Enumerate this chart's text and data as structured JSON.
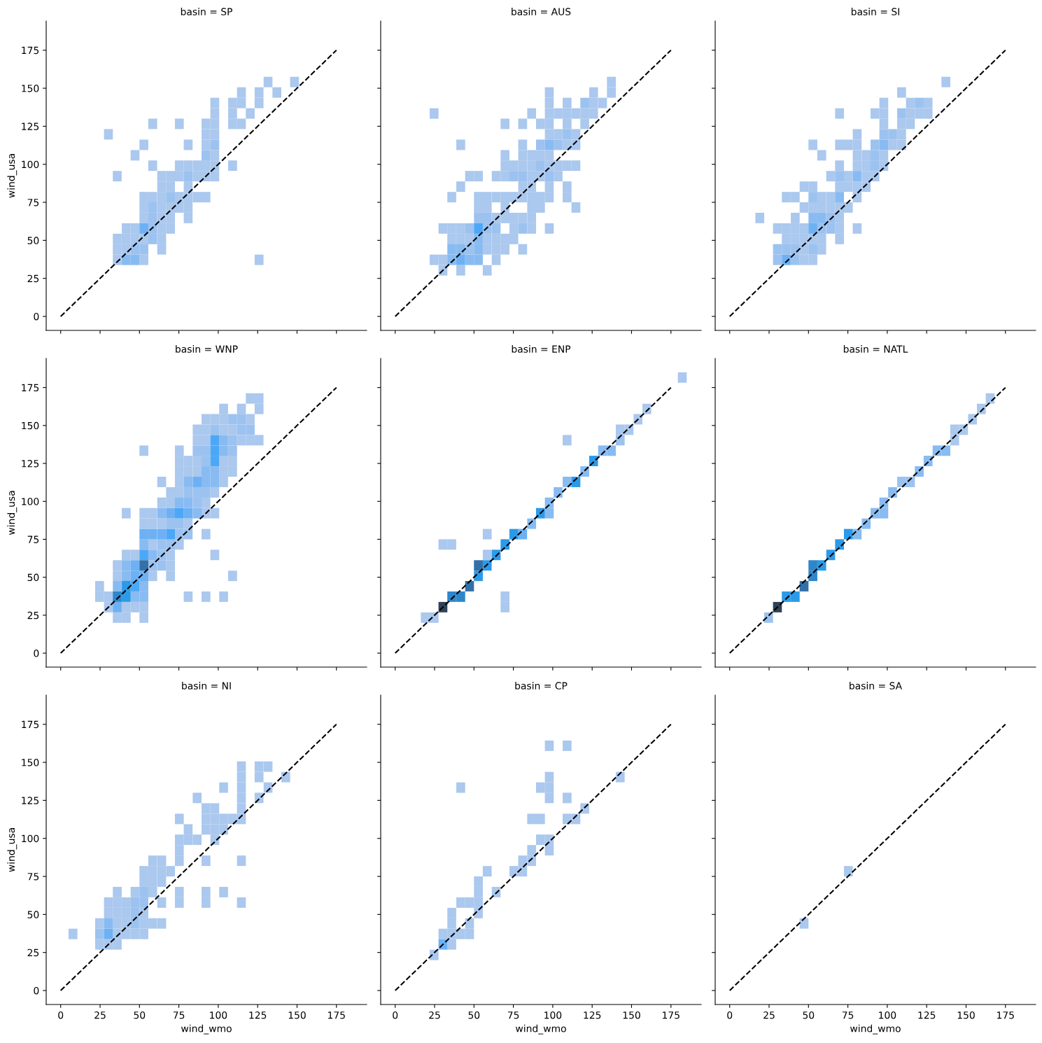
{
  "chart_data": [
    {
      "type": "scatter",
      "title": "basin = SP",
      "ylabel": "wind_usa",
      "xlim": [
        -9.2,
        194.2
      ],
      "ylim": [
        -9.2,
        194.2
      ],
      "xticks": [
        0,
        25,
        50,
        75,
        100,
        125,
        150,
        175
      ],
      "yticks": [
        0,
        25,
        50,
        75,
        100,
        125,
        150,
        175
      ],
      "tick_labels": "y",
      "marker": "square",
      "series": [
        {
          "color": "#abc8ee",
          "x": [
            131.6,
            148.4,
            114.7,
            125.9,
            137.2,
            97.8,
            109.1,
            114.7,
            125.9,
            97.8,
            109.1,
            120.3,
            58.4,
            75.3,
            92.2,
            97.8,
            109.1,
            114.7,
            30.3,
            92.2,
            97.8,
            52.8,
            80.9,
            92.2,
            47.2,
            97.8,
            58.4,
            75.3,
            80.9,
            86.6,
            92.2,
            97.8,
            109.1,
            35.9,
            64.1,
            69.7,
            75.3,
            86.6,
            92.2,
            97.8,
            64.1,
            69.7,
            80.9,
            52.8,
            58.4,
            64.1,
            75.3,
            80.9,
            86.6,
            92.2,
            52.8,
            64.1,
            69.7,
            75.3,
            80.9,
            52.8,
            64.1,
            69.7,
            80.9,
            41.6,
            47.2,
            64.1,
            69.7,
            35.9,
            41.6,
            47.2,
            52.8,
            64.1,
            35.9,
            41.6,
            64.1,
            35.9,
            52.8,
            125.9
          ],
          "values": [
            154.1,
            154.1,
            147.2,
            147.2,
            147.2,
            140.3,
            140.3,
            140.3,
            140.3,
            133.4,
            133.4,
            133.4,
            126.6,
            126.6,
            126.6,
            126.6,
            126.6,
            126.6,
            119.7,
            119.7,
            119.7,
            112.8,
            112.8,
            112.8,
            105.9,
            105.9,
            99.1,
            99.1,
            99.1,
            99.1,
            99.1,
            99.1,
            99.1,
            92.2,
            92.2,
            92.2,
            92.2,
            92.2,
            92.2,
            92.2,
            85.3,
            85.3,
            85.3,
            78.4,
            78.4,
            78.4,
            78.4,
            78.4,
            78.4,
            78.4,
            71.6,
            71.6,
            71.6,
            71.6,
            71.6,
            64.7,
            64.7,
            64.7,
            64.7,
            57.8,
            57.8,
            57.8,
            57.8,
            50.9,
            50.9,
            50.9,
            50.9,
            50.9,
            44.1,
            44.1,
            44.1,
            37.2,
            37.2,
            37.2
          ]
        },
        {
          "color": "#9cc2f0",
          "x": [
            97.8,
            92.2,
            80.9,
            69.7,
            58.4,
            58.4,
            58.4,
            58.4,
            47.2,
            52.8
          ],
          "values": [
            112.8,
            105.9,
            92.2,
            78.4,
            71.6,
            64.7,
            57.8,
            50.9,
            44.1,
            44.1
          ]
        },
        {
          "color": "#88bbf2",
          "x": [
            41.6,
            47.2
          ],
          "values": [
            37.2,
            37.2
          ]
        },
        {
          "color": "#6db1f4",
          "x": [
            52.8
          ],
          "values": [
            57.8
          ]
        },
        {
          "type": "line",
          "color": "#000000",
          "line_style": "dashed",
          "marker": "none",
          "x": [
            0,
            175
          ],
          "values": [
            0,
            175
          ]
        }
      ]
    },
    {
      "type": "scatter",
      "title": "basin = AUS",
      "xlim": [
        -9.2,
        194.2
      ],
      "ylim": [
        -9.2,
        194.2
      ],
      "xticks": [
        0,
        25,
        50,
        75,
        100,
        125,
        150,
        175
      ],
      "yticks": [
        0,
        25,
        50,
        75,
        100,
        125,
        150,
        175
      ],
      "tick_labels": false,
      "marker": "square",
      "series": [
        {
          "color": "#abc8ee",
          "x": [
            137.2,
            97.8,
            125.9,
            137.2,
            97.8,
            109.1,
            125.9,
            131.6,
            24.7,
            86.6,
            97.8,
            103.4,
            109.1,
            114.7,
            120.3,
            125.9,
            69.7,
            80.9,
            92.2,
            97.8,
            109.1,
            120.3,
            97.8,
            103.4,
            114.7,
            41.6,
            80.9,
            109.1,
            114.7,
            69.7,
            80.9,
            86.6,
            92.2,
            97.8,
            69.7,
            75.3,
            80.9,
            86.6,
            97.8,
            103.4,
            109.1,
            114.7,
            47.2,
            52.8,
            64.1,
            69.7,
            86.6,
            92.2,
            103.4,
            41.6,
            80.9,
            86.6,
            97.8,
            109.1,
            35.9,
            52.8,
            58.4,
            64.1,
            69.7,
            75.3,
            80.9,
            86.6,
            92.2,
            97.8,
            109.1,
            52.8,
            58.4,
            69.7,
            86.6,
            92.2,
            114.7,
            64.1,
            69.7,
            75.3,
            80.9,
            86.6,
            30.3,
            35.9,
            41.6,
            75.3,
            86.6,
            97.8,
            35.9,
            41.6,
            47.2,
            58.4,
            64.1,
            69.7,
            75.3,
            58.4,
            64.1,
            69.7,
            80.9,
            24.7,
            30.3,
            64.1,
            30.3,
            41.6,
            58.4
          ],
          "values": [
            154.1,
            147.2,
            147.2,
            147.2,
            140.3,
            140.3,
            140.3,
            140.3,
            133.4,
            133.4,
            133.4,
            133.4,
            133.4,
            133.4,
            133.4,
            133.4,
            126.6,
            126.6,
            126.6,
            126.6,
            126.6,
            126.6,
            119.7,
            119.7,
            119.7,
            112.8,
            112.8,
            112.8,
            112.8,
            105.9,
            105.9,
            105.9,
            105.9,
            105.9,
            99.1,
            99.1,
            99.1,
            99.1,
            99.1,
            99.1,
            99.1,
            99.1,
            92.2,
            92.2,
            92.2,
            92.2,
            92.2,
            92.2,
            92.2,
            85.3,
            85.3,
            85.3,
            85.3,
            85.3,
            78.4,
            78.4,
            78.4,
            78.4,
            78.4,
            78.4,
            78.4,
            78.4,
            78.4,
            78.4,
            78.4,
            71.6,
            71.6,
            71.6,
            71.6,
            71.6,
            71.6,
            64.7,
            64.7,
            64.7,
            64.7,
            64.7,
            57.8,
            57.8,
            57.8,
            57.8,
            57.8,
            57.8,
            50.9,
            50.9,
            50.9,
            50.9,
            50.9,
            50.9,
            50.9,
            44.1,
            44.1,
            44.1,
            44.1,
            37.2,
            37.2,
            37.2,
            30.3,
            30.3,
            30.3
          ]
        },
        {
          "color": "#9cc2f0",
          "x": [
            120.3,
            109.1,
            92.2,
            103.4,
            92.2,
            75.3,
            80.9,
            97.8,
            52.8,
            58.4,
            47.2,
            58.4,
            64.1,
            80.9,
            47.2
          ],
          "values": [
            140.3,
            119.7,
            112.8,
            112.8,
            99.1,
            92.2,
            92.2,
            92.2,
            64.7,
            64.7,
            57.8,
            57.8,
            57.8,
            57.8,
            44.1
          ]
        },
        {
          "color": "#88bbf2",
          "x": [
            97.8,
            52.8,
            35.9,
            41.6,
            52.8,
            35.9,
            47.2,
            52.8
          ],
          "values": [
            112.8,
            50.9,
            44.1,
            44.1,
            44.1,
            37.2,
            37.2,
            37.2
          ]
        },
        {
          "color": "#6db1f4",
          "x": [
            41.6
          ],
          "values": [
            37.2
          ]
        },
        {
          "color": "#4ca8f6",
          "x": [
            52.8
          ],
          "values": [
            57.8
          ]
        },
        {
          "type": "line",
          "color": "#000000",
          "line_style": "dashed",
          "marker": "none",
          "x": [
            0,
            175
          ],
          "values": [
            0,
            175
          ]
        }
      ]
    },
    {
      "type": "scatter",
      "title": "basin = SI",
      "xlim": [
        -9.2,
        194.2
      ],
      "ylim": [
        -9.2,
        194.2
      ],
      "xticks": [
        0,
        25,
        50,
        75,
        100,
        125,
        150,
        175
      ],
      "yticks": [
        0,
        25,
        50,
        75,
        100,
        125,
        150,
        175
      ],
      "tick_labels": false,
      "marker": "square",
      "series": [
        {
          "color": "#abc8ee",
          "x": [
            137.2,
            109.1,
            97.8,
            114.7,
            125.9,
            69.7,
            92.2,
            97.8,
            114.7,
            120.3,
            125.9,
            97.8,
            109.1,
            114.7,
            80.9,
            109.1,
            52.8,
            69.7,
            75.3,
            80.9,
            103.4,
            109.1,
            58.4,
            80.9,
            86.6,
            97.8,
            69.7,
            80.9,
            86.6,
            97.8,
            64.1,
            75.3,
            86.6,
            92.2,
            47.2,
            52.8,
            69.7,
            75.3,
            80.9,
            86.6,
            35.9,
            41.6,
            58.4,
            64.1,
            80.9,
            47.2,
            52.8,
            58.4,
            64.1,
            69.7,
            75.3,
            19.1,
            41.6,
            69.7,
            30.3,
            35.9,
            41.6,
            47.2,
            69.7,
            80.9,
            35.9,
            41.6,
            47.2,
            52.8,
            58.4,
            69.7,
            47.2,
            58.4,
            47.2,
            52.8
          ],
          "values": [
            154.1,
            147.2,
            140.3,
            140.3,
            140.3,
            133.4,
            133.4,
            133.4,
            133.4,
            133.4,
            133.4,
            126.6,
            126.6,
            126.6,
            119.7,
            119.7,
            112.8,
            112.8,
            112.8,
            112.8,
            112.8,
            112.8,
            105.9,
            105.9,
            105.9,
            105.9,
            99.1,
            99.1,
            99.1,
            99.1,
            92.2,
            92.2,
            92.2,
            92.2,
            85.3,
            85.3,
            85.3,
            85.3,
            85.3,
            85.3,
            78.4,
            78.4,
            78.4,
            78.4,
            78.4,
            71.6,
            71.6,
            71.6,
            71.6,
            71.6,
            71.6,
            64.7,
            64.7,
            64.7,
            57.8,
            57.8,
            57.8,
            57.8,
            57.8,
            57.8,
            50.9,
            50.9,
            50.9,
            50.9,
            50.9,
            50.9,
            44.1,
            44.1,
            37.2,
            37.2
          ]
        },
        {
          "color": "#9cc2f0",
          "x": [
            120.3,
            109.1,
            97.8,
            103.4,
            92.2,
            92.2,
            92.2,
            69.7,
            52.8,
            64.1,
            58.4,
            64.1,
            30.3,
            35.9,
            41.6,
            52.8,
            30.3,
            41.6
          ],
          "values": [
            140.3,
            133.4,
            119.7,
            119.7,
            112.8,
            105.9,
            99.1,
            92.2,
            78.4,
            64.7,
            57.8,
            57.8,
            44.1,
            44.1,
            44.1,
            44.1,
            37.2,
            37.2
          ]
        },
        {
          "color": "#88bbf2",
          "x": [
            97.8,
            80.9,
            69.7,
            52.8,
            58.4
          ],
          "values": [
            112.8,
            92.2,
            78.4,
            64.7,
            64.7
          ]
        },
        {
          "color": "#6db1f4",
          "x": [
            52.8,
            35.9
          ],
          "values": [
            57.8,
            37.2
          ]
        },
        {
          "type": "line",
          "color": "#000000",
          "line_style": "dashed",
          "marker": "none",
          "x": [
            0,
            175
          ],
          "values": [
            0,
            175
          ]
        }
      ]
    },
    {
      "type": "scatter",
      "title": "basin = WNP",
      "ylabel": "wind_usa",
      "xlim": [
        -9.2,
        194.2
      ],
      "ylim": [
        -9.2,
        194.2
      ],
      "xticks": [
        0,
        25,
        50,
        75,
        100,
        125,
        150,
        175
      ],
      "yticks": [
        0,
        25,
        50,
        75,
        100,
        125,
        150,
        175
      ],
      "tick_labels": "y",
      "marker": "square",
      "series": [
        {
          "color": "#abc8ee",
          "x": [
            120.3,
            125.9,
            103.4,
            114.7,
            125.9,
            92.2,
            97.8,
            103.4,
            120.3,
            86.6,
            92.2,
            103.4,
            109.1,
            86.6,
            92.2,
            114.7,
            120.3,
            125.9,
            52.8,
            75.3,
            75.3,
            80.9,
            86.6,
            103.4,
            109.1,
            75.3,
            80.9,
            86.6,
            103.4,
            109.1,
            64.1,
            75.3,
            103.4,
            69.7,
            75.3,
            97.8,
            64.1,
            69.7,
            92.2,
            41.6,
            52.8,
            58.4,
            92.2,
            97.8,
            52.8,
            58.4,
            64.1,
            80.9,
            92.2,
            58.4,
            75.3,
            41.6,
            47.2,
            69.7,
            97.8,
            35.9,
            69.7,
            35.9,
            58.4,
            69.7,
            109.1,
            24.7,
            24.7,
            30.3,
            80.9,
            92.2,
            103.4,
            30.3,
            41.6,
            47.2,
            52.8,
            35.9,
            41.6,
            52.8
          ],
          "values": [
            167.8,
            167.8,
            160.9,
            160.9,
            160.9,
            154.1,
            154.1,
            154.1,
            154.1,
            147.2,
            147.2,
            147.2,
            147.2,
            140.3,
            140.3,
            140.3,
            140.3,
            140.3,
            133.4,
            133.4,
            126.6,
            126.6,
            126.6,
            126.6,
            126.6,
            119.7,
            119.7,
            119.7,
            119.7,
            119.7,
            112.8,
            112.8,
            112.8,
            105.9,
            105.9,
            105.9,
            99.1,
            99.1,
            99.1,
            92.2,
            92.2,
            92.2,
            92.2,
            92.2,
            85.3,
            85.3,
            85.3,
            85.3,
            78.4,
            71.6,
            71.6,
            64.7,
            64.7,
            64.7,
            64.7,
            57.8,
            57.8,
            50.9,
            50.9,
            50.9,
            50.9,
            44.1,
            37.2,
            37.2,
            37.2,
            37.2,
            37.2,
            30.3,
            30.3,
            30.3,
            30.3,
            23.4,
            23.4,
            23.4
          ]
        },
        {
          "color": "#9cc2f0",
          "x": [
            109.1,
            114.7,
            97.8,
            114.7,
            120.3,
            109.1,
            86.6,
            92.2,
            109.1,
            92.2,
            80.9,
            86.6,
            92.2,
            86.6,
            69.7,
            75.3,
            75.3,
            80.9,
            64.1,
            69.7,
            64.1,
            58.4,
            64.1
          ],
          "values": [
            154.1,
            154.1,
            147.2,
            147.2,
            147.2,
            140.3,
            133.4,
            133.4,
            133.4,
            126.6,
            105.9,
            105.9,
            105.9,
            99.1,
            85.3,
            85.3,
            78.4,
            78.4,
            71.6,
            71.6,
            64.7,
            57.8,
            57.8
          ]
        },
        {
          "color": "#88bbf2",
          "x": [
            103.4,
            103.4,
            92.2,
            97.8,
            80.9,
            92.2,
            97.8,
            75.3,
            80.9,
            64.1,
            86.6,
            52.8,
            58.4,
            41.6,
            41.6,
            35.9,
            52.8,
            47.2,
            52.8
          ],
          "values": [
            140.3,
            133.4,
            119.7,
            119.7,
            112.8,
            112.8,
            112.8,
            99.1,
            99.1,
            92.2,
            92.2,
            71.6,
            64.7,
            57.8,
            50.9,
            44.1,
            44.1,
            37.2,
            37.2
          ]
        },
        {
          "color": "#6db1f4",
          "x": [
            86.6,
            69.7,
            80.9,
            52.8,
            58.4,
            64.1,
            47.2,
            47.2,
            52.8,
            35.9
          ],
          "values": [
            112.8,
            92.2,
            92.2,
            78.4,
            78.4,
            78.4,
            57.8,
            50.9,
            50.9,
            30.3
          ]
        },
        {
          "color": "#4ca8f6",
          "x": [
            97.8,
            97.8,
            97.8,
            75.3,
            69.7,
            52.8,
            47.2
          ],
          "values": [
            140.3,
            133.4,
            126.6,
            92.2,
            78.4,
            64.7,
            44.1
          ]
        },
        {
          "color": "#2b9ae8",
          "x": [
            41.6,
            41.6
          ],
          "values": [
            44.1,
            37.2
          ]
        },
        {
          "color": "#2e86cb",
          "x": [
            35.9
          ],
          "values": [
            37.2
          ]
        },
        {
          "color": "#3370a8",
          "x": [
            52.8
          ],
          "values": [
            57.8
          ]
        },
        {
          "type": "line",
          "color": "#000000",
          "line_style": "dashed",
          "marker": "none",
          "x": [
            0,
            175
          ],
          "values": [
            0,
            175
          ]
        }
      ]
    },
    {
      "type": "scatter",
      "title": "basin = ENP",
      "xlim": [
        -9.2,
        194.2
      ],
      "ylim": [
        -9.2,
        194.2
      ],
      "xticks": [
        0,
        25,
        50,
        75,
        100,
        125,
        150,
        175
      ],
      "yticks": [
        0,
        25,
        50,
        75,
        100,
        125,
        150,
        175
      ],
      "tick_labels": false,
      "marker": "square",
      "series": [
        {
          "color": "#abc8ee",
          "x": [
            19.1,
            24.7,
            58.4,
            30.3,
            35.9,
            58.4,
            69.7,
            69.7,
            109.1,
            142.8,
            148.4,
            154.1,
            159.7,
            182.2
          ],
          "values": [
            23.4,
            23.4,
            64.7,
            71.6,
            71.6,
            78.4,
            30.3,
            37.2,
            140.3,
            147.2,
            147.2,
            154.1,
            160.9,
            181.6
          ]
        },
        {
          "color": "#9cc2f0",
          "x": [
            142.8
          ],
          "values": [
            140.3
          ]
        },
        {
          "color": "#88bbf2",
          "x": [
            86.6,
            97.8,
            97.8,
            103.4,
            109.1,
            120.3,
            131.6,
            137.2
          ],
          "values": [
            85.3,
            92.2,
            99.1,
            105.9,
            112.8,
            119.7,
            133.4,
            133.4
          ]
        },
        {
          "color": "#6db1f4",
          "x": [
            80.9
          ],
          "values": [
            78.4
          ]
        },
        {
          "color": "#2b9ae8",
          "x": [
            52.8,
            58.4,
            64.1,
            69.7,
            75.3,
            92.2,
            114.7,
            125.9
          ],
          "values": [
            50.9,
            57.8,
            64.7,
            71.6,
            78.4,
            92.2,
            112.8,
            126.6
          ]
        },
        {
          "color": "#2e86cb",
          "x": [
            35.9,
            41.6
          ],
          "values": [
            37.2,
            37.2
          ]
        },
        {
          "color": "#3370a8",
          "x": [
            47.2,
            52.8
          ],
          "values": [
            44.1,
            57.8
          ]
        },
        {
          "color": "#2f4257",
          "x": [
            30.3
          ],
          "values": [
            30.3
          ]
        },
        {
          "type": "line",
          "color": "#000000",
          "line_style": "dashed",
          "marker": "none",
          "x": [
            0,
            175
          ],
          "values": [
            0,
            175
          ]
        }
      ]
    },
    {
      "type": "scatter",
      "title": "basin = NATL",
      "xlim": [
        -9.2,
        194.2
      ],
      "ylim": [
        -9.2,
        194.2
      ],
      "xticks": [
        0,
        25,
        50,
        75,
        100,
        125,
        150,
        175
      ],
      "yticks": [
        0,
        25,
        50,
        75,
        100,
        125,
        150,
        175
      ],
      "tick_labels": false,
      "marker": "square",
      "series": [
        {
          "color": "#abc8ee",
          "x": [
            142.8,
            142.8,
            148.4,
            154.1,
            159.7,
            165.3
          ],
          "values": [
            140.3,
            147.2,
            147.2,
            154.1,
            160.9,
            167.8
          ]
        },
        {
          "color": "#9cc2f0",
          "x": [
            24.7,
            109.1,
            114.7
          ],
          "values": [
            23.4,
            112.8,
            112.8
          ]
        },
        {
          "color": "#88bbf2",
          "x": [
            80.9,
            86.6,
            92.2,
            97.8,
            97.8,
            103.4,
            120.3,
            125.9,
            131.6,
            137.2
          ],
          "values": [
            78.4,
            85.3,
            92.2,
            92.2,
            99.1,
            105.9,
            119.7,
            126.6,
            133.4,
            133.4
          ]
        },
        {
          "color": "#2b9ae8",
          "x": [
            35.9,
            41.6,
            58.4,
            64.1,
            69.7,
            75.3
          ],
          "values": [
            37.2,
            37.2,
            57.8,
            64.7,
            71.6,
            78.4
          ]
        },
        {
          "color": "#2e86cb",
          "x": [
            52.8,
            52.8
          ],
          "values": [
            50.9,
            57.8
          ]
        },
        {
          "color": "#3370a8",
          "x": [
            47.2
          ],
          "values": [
            44.1
          ]
        },
        {
          "color": "#2f4257",
          "x": [
            30.3
          ],
          "values": [
            30.3
          ]
        },
        {
          "type": "line",
          "color": "#000000",
          "line_style": "dashed",
          "marker": "none",
          "x": [
            0,
            175
          ],
          "values": [
            0,
            175
          ]
        }
      ]
    },
    {
      "type": "scatter",
      "title": "basin = NI",
      "xlabel": "wind_wmo",
      "ylabel": "wind_usa",
      "xlim": [
        -9.2,
        194.2
      ],
      "ylim": [
        -9.2,
        194.2
      ],
      "xticks": [
        0,
        25,
        50,
        75,
        100,
        125,
        150,
        175
      ],
      "yticks": [
        0,
        25,
        50,
        75,
        100,
        125,
        150,
        175
      ],
      "marker": "square",
      "series": [
        {
          "color": "#abc8ee",
          "x": [
            114.7,
            125.9,
            131.6,
            114.7,
            125.9,
            142.8,
            103.4,
            114.7,
            131.6,
            86.6,
            114.7,
            125.9,
            92.2,
            97.8,
            114.7,
            75.3,
            92.2,
            97.8,
            103.4,
            109.1,
            114.7,
            80.9,
            92.2,
            97.8,
            103.4,
            75.3,
            80.9,
            86.6,
            97.8,
            75.3,
            58.4,
            64.1,
            75.3,
            92.2,
            114.7,
            52.8,
            58.4,
            64.1,
            69.7,
            52.8,
            58.4,
            64.1,
            35.9,
            47.2,
            58.4,
            75.3,
            92.2,
            103.4,
            30.3,
            35.9,
            41.6,
            64.1,
            75.3,
            92.2,
            114.7,
            30.3,
            35.9,
            41.6,
            52.8,
            24.7,
            35.9,
            41.6,
            52.8,
            58.4,
            64.1,
            7.8,
            35.9,
            41.6,
            47.2,
            52.8,
            24.7,
            30.3,
            35.9
          ],
          "values": [
            147.2,
            147.2,
            147.2,
            140.3,
            140.3,
            140.3,
            133.4,
            133.4,
            133.4,
            126.6,
            126.6,
            126.6,
            119.7,
            119.7,
            119.7,
            112.8,
            112.8,
            112.8,
            112.8,
            112.8,
            112.8,
            105.9,
            105.9,
            105.9,
            105.9,
            99.1,
            99.1,
            99.1,
            99.1,
            92.2,
            85.3,
            85.3,
            85.3,
            85.3,
            85.3,
            78.4,
            78.4,
            78.4,
            78.4,
            71.6,
            71.6,
            71.6,
            64.7,
            64.7,
            64.7,
            64.7,
            64.7,
            64.7,
            57.8,
            57.8,
            57.8,
            57.8,
            57.8,
            57.8,
            57.8,
            50.9,
            50.9,
            50.9,
            50.9,
            44.1,
            44.1,
            44.1,
            44.1,
            44.1,
            44.1,
            37.2,
            37.2,
            37.2,
            37.2,
            37.2,
            30.3,
            30.3,
            30.3
          ]
        },
        {
          "color": "#9cc2f0",
          "x": [
            52.8,
            47.2,
            52.8,
            47.2,
            47.2,
            24.7
          ],
          "values": [
            64.7,
            57.8,
            57.8,
            50.9,
            44.1,
            37.2
          ]
        },
        {
          "color": "#88bbf2",
          "x": [
            30.3
          ],
          "values": [
            44.1
          ]
        },
        {
          "color": "#6db1f4",
          "x": [
            30.3
          ],
          "values": [
            37.2
          ]
        },
        {
          "type": "line",
          "color": "#000000",
          "line_style": "dashed",
          "marker": "none",
          "x": [
            0,
            175
          ],
          "values": [
            0,
            175
          ]
        }
      ]
    },
    {
      "type": "scatter",
      "title": "basin = CP",
      "xlabel": "wind_wmo",
      "xlim": [
        -9.2,
        194.2
      ],
      "ylim": [
        -9.2,
        194.2
      ],
      "xticks": [
        0,
        25,
        50,
        75,
        100,
        125,
        150,
        175
      ],
      "yticks": [
        0,
        25,
        50,
        75,
        100,
        125,
        150,
        175
      ],
      "tick_labels": "x",
      "marker": "square",
      "series": [
        {
          "color": "#abc8ee",
          "x": [
            24.7,
            35.9,
            30.3,
            35.9,
            41.6,
            47.2,
            35.9,
            47.2,
            35.9,
            52.8,
            41.6,
            47.2,
            52.8,
            52.8,
            64.1,
            52.8,
            58.4,
            75.3,
            80.9,
            80.9,
            86.6,
            86.6,
            97.8,
            92.2,
            97.8,
            86.6,
            92.2,
            109.1,
            114.7,
            120.3,
            97.8,
            109.1,
            41.6,
            92.2,
            97.8,
            97.8,
            142.8,
            97.8,
            109.1
          ],
          "values": [
            23.4,
            30.3,
            37.2,
            37.2,
            37.2,
            37.2,
            44.1,
            44.1,
            50.9,
            50.9,
            57.8,
            57.8,
            57.8,
            64.7,
            64.7,
            71.6,
            78.4,
            78.4,
            78.4,
            85.3,
            85.3,
            92.2,
            92.2,
            99.1,
            99.1,
            112.8,
            112.8,
            112.8,
            112.8,
            119.7,
            126.6,
            126.6,
            133.4,
            133.4,
            133.4,
            140.3,
            140.3,
            160.9,
            160.9
          ]
        },
        {
          "color": "#6db1f4",
          "x": [
            30.3
          ],
          "values": [
            30.3
          ]
        },
        {
          "type": "line",
          "color": "#000000",
          "line_style": "dashed",
          "marker": "none",
          "x": [
            0,
            175
          ],
          "values": [
            0,
            175
          ]
        }
      ]
    },
    {
      "type": "scatter",
      "title": "basin = SA",
      "xlabel": "wind_wmo",
      "xlim": [
        -9.2,
        194.2
      ],
      "ylim": [
        -9.2,
        194.2
      ],
      "xticks": [
        0,
        25,
        50,
        75,
        100,
        125,
        150,
        175
      ],
      "yticks": [
        0,
        25,
        50,
        75,
        100,
        125,
        150,
        175
      ],
      "tick_labels": "x",
      "marker": "square",
      "series": [
        {
          "color": "#abc8ee",
          "x": [
            47.2,
            75.3
          ],
          "values": [
            44.1,
            78.4
          ]
        },
        {
          "type": "line",
          "color": "#000000",
          "line_style": "dashed",
          "marker": "none",
          "x": [
            0,
            175
          ],
          "values": [
            0,
            175
          ]
        }
      ]
    }
  ]
}
